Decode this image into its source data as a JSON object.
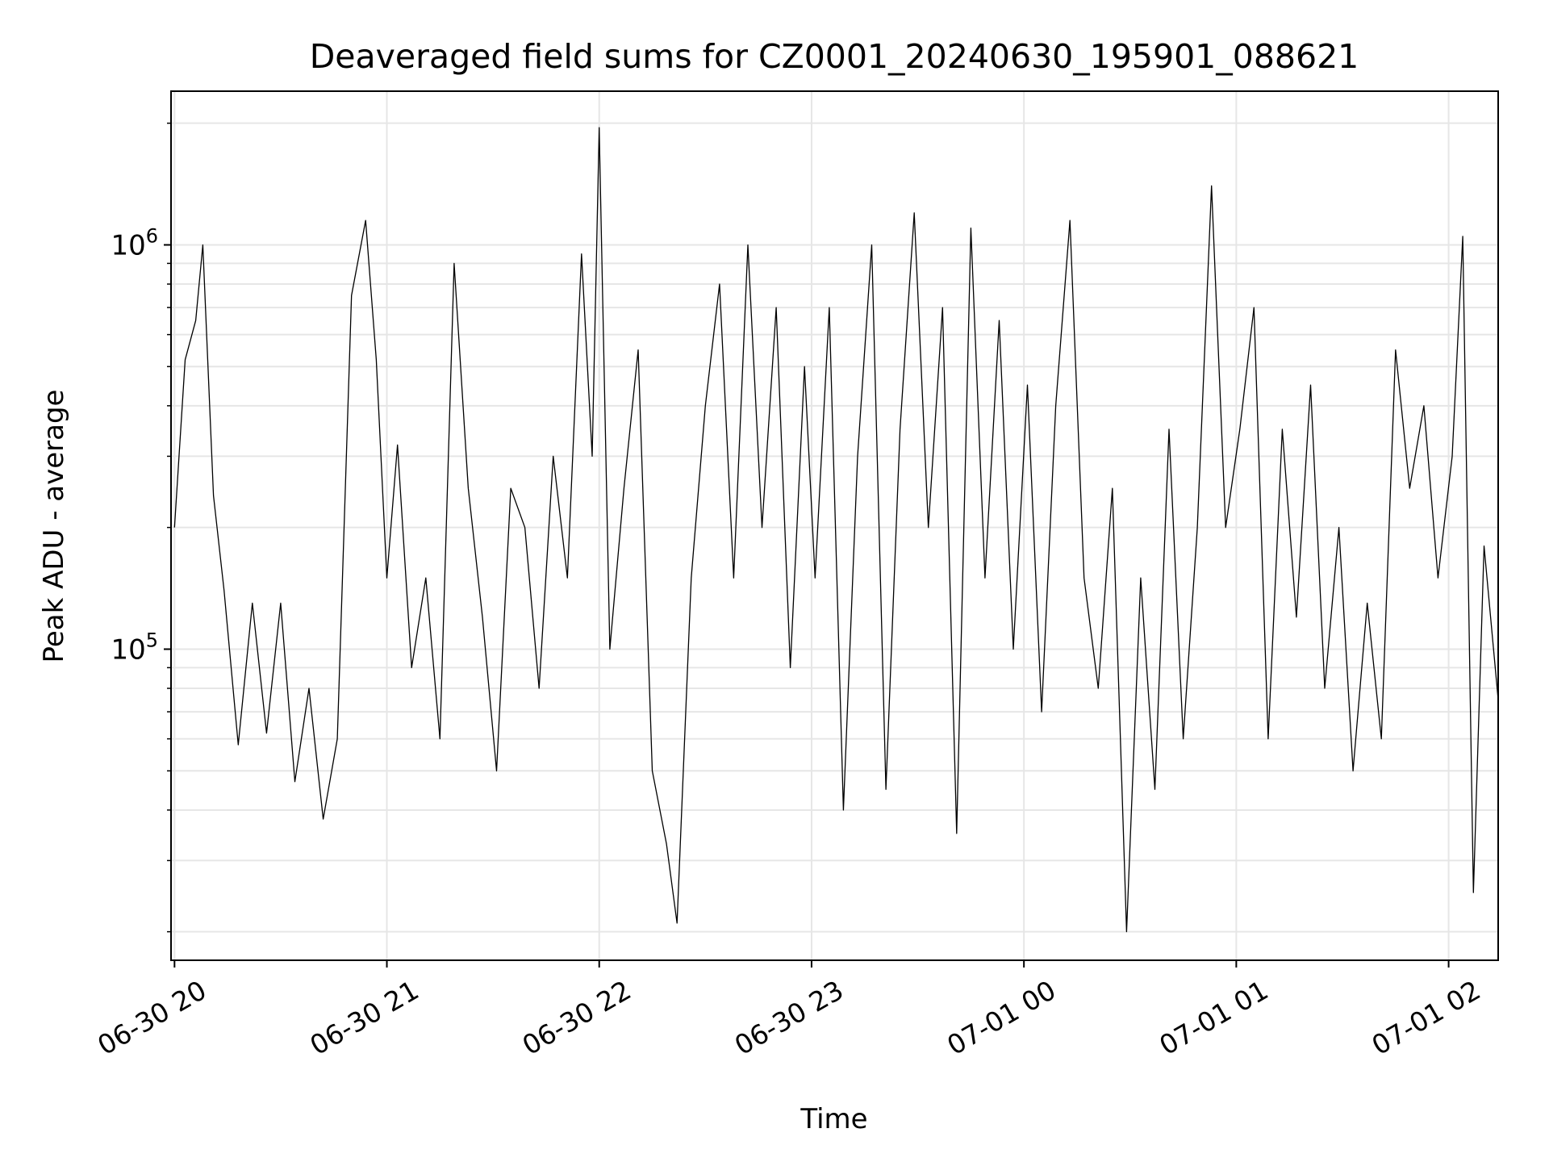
{
  "chart_data": {
    "type": "line",
    "title": "Deaveraged field sums for CZ0001_20240630_195901_088621",
    "xlabel": "Time",
    "ylabel": "Peak ADU - average",
    "y_scale": "log",
    "grid": true,
    "line_color": "#000000",
    "xlim": [
      "2024-06-30 19:59:01",
      "2024-07-01 02:14:00"
    ],
    "ylim": [
      17000,
      2400000
    ],
    "x_ticks": [
      {
        "value": "2024-06-30 20:00",
        "label": "06-30 20"
      },
      {
        "value": "2024-06-30 21:00",
        "label": "06-30 21"
      },
      {
        "value": "2024-06-30 22:00",
        "label": "06-30 22"
      },
      {
        "value": "2024-06-30 23:00",
        "label": "06-30 23"
      },
      {
        "value": "2024-07-01 00:00",
        "label": "07-01 00"
      },
      {
        "value": "2024-07-01 01:00",
        "label": "07-01 01"
      },
      {
        "value": "2024-07-01 02:00",
        "label": "07-01 02"
      }
    ],
    "y_ticks": [
      {
        "value": 100000,
        "base": "10",
        "exp": "5"
      },
      {
        "value": 1000000,
        "base": "10",
        "exp": "6"
      }
    ],
    "series": [
      {
        "points": [
          [
            "2024-06-30 20:00",
            200000
          ],
          [
            "2024-06-30 20:03",
            520000
          ],
          [
            "2024-06-30 20:06",
            650000
          ],
          [
            "2024-06-30 20:08",
            1000000
          ],
          [
            "2024-06-30 20:11",
            240000
          ],
          [
            "2024-06-30 20:14",
            140000
          ],
          [
            "2024-06-30 20:18",
            58000
          ],
          [
            "2024-06-30 20:22",
            130000
          ],
          [
            "2024-06-30 20:26",
            62000
          ],
          [
            "2024-06-30 20:30",
            130000
          ],
          [
            "2024-06-30 20:34",
            47000
          ],
          [
            "2024-06-30 20:38",
            80000
          ],
          [
            "2024-06-30 20:42",
            38000
          ],
          [
            "2024-06-30 20:46",
            60000
          ],
          [
            "2024-06-30 20:50",
            750000
          ],
          [
            "2024-06-30 20:54",
            1150000
          ],
          [
            "2024-06-30 20:57",
            520000
          ],
          [
            "2024-06-30 21:00",
            150000
          ],
          [
            "2024-06-30 21:03",
            320000
          ],
          [
            "2024-06-30 21:07",
            90000
          ],
          [
            "2024-06-30 21:11",
            150000
          ],
          [
            "2024-06-30 21:15",
            60000
          ],
          [
            "2024-06-30 21:19",
            900000
          ],
          [
            "2024-06-30 21:23",
            250000
          ],
          [
            "2024-06-30 21:27",
            120000
          ],
          [
            "2024-06-30 21:31",
            50000
          ],
          [
            "2024-06-30 21:35",
            250000
          ],
          [
            "2024-06-30 21:39",
            200000
          ],
          [
            "2024-06-30 21:43",
            80000
          ],
          [
            "2024-06-30 21:47",
            300000
          ],
          [
            "2024-06-30 21:51",
            150000
          ],
          [
            "2024-06-30 21:55",
            950000
          ],
          [
            "2024-06-30 21:58",
            300000
          ],
          [
            "2024-06-30 22:00",
            1950000
          ],
          [
            "2024-06-30 22:03",
            100000
          ],
          [
            "2024-06-30 22:07",
            250000
          ],
          [
            "2024-06-30 22:11",
            550000
          ],
          [
            "2024-06-30 22:15",
            50000
          ],
          [
            "2024-06-30 22:19",
            33000
          ],
          [
            "2024-06-30 22:22",
            21000
          ],
          [
            "2024-06-30 22:26",
            150000
          ],
          [
            "2024-06-30 22:30",
            400000
          ],
          [
            "2024-06-30 22:34",
            800000
          ],
          [
            "2024-06-30 22:38",
            150000
          ],
          [
            "2024-06-30 22:42",
            1000000
          ],
          [
            "2024-06-30 22:46",
            200000
          ],
          [
            "2024-06-30 22:50",
            700000
          ],
          [
            "2024-06-30 22:54",
            90000
          ],
          [
            "2024-06-30 22:58",
            500000
          ],
          [
            "2024-06-30 23:01",
            150000
          ],
          [
            "2024-06-30 23:05",
            700000
          ],
          [
            "2024-06-30 23:09",
            40000
          ],
          [
            "2024-06-30 23:13",
            300000
          ],
          [
            "2024-06-30 23:17",
            1000000
          ],
          [
            "2024-06-30 23:21",
            45000
          ],
          [
            "2024-06-30 23:25",
            350000
          ],
          [
            "2024-06-30 23:29",
            1200000
          ],
          [
            "2024-06-30 23:33",
            200000
          ],
          [
            "2024-06-30 23:37",
            700000
          ],
          [
            "2024-06-30 23:41",
            35000
          ],
          [
            "2024-06-30 23:45",
            1100000
          ],
          [
            "2024-06-30 23:49",
            150000
          ],
          [
            "2024-06-30 23:53",
            650000
          ],
          [
            "2024-06-30 23:57",
            100000
          ],
          [
            "2024-07-01 00:01",
            450000
          ],
          [
            "2024-07-01 00:05",
            70000
          ],
          [
            "2024-07-01 00:09",
            400000
          ],
          [
            "2024-07-01 00:13",
            1150000
          ],
          [
            "2024-07-01 00:17",
            150000
          ],
          [
            "2024-07-01 00:21",
            80000
          ],
          [
            "2024-07-01 00:25",
            250000
          ],
          [
            "2024-07-01 00:29",
            20000
          ],
          [
            "2024-07-01 00:33",
            150000
          ],
          [
            "2024-07-01 00:37",
            45000
          ],
          [
            "2024-07-01 00:41",
            350000
          ],
          [
            "2024-07-01 00:45",
            60000
          ],
          [
            "2024-07-01 00:49",
            200000
          ],
          [
            "2024-07-01 00:53",
            1400000
          ],
          [
            "2024-07-01 00:57",
            200000
          ],
          [
            "2024-07-01 01:01",
            350000
          ],
          [
            "2024-07-01 01:05",
            700000
          ],
          [
            "2024-07-01 01:09",
            60000
          ],
          [
            "2024-07-01 01:13",
            350000
          ],
          [
            "2024-07-01 01:17",
            120000
          ],
          [
            "2024-07-01 01:21",
            450000
          ],
          [
            "2024-07-01 01:25",
            80000
          ],
          [
            "2024-07-01 01:29",
            200000
          ],
          [
            "2024-07-01 01:33",
            50000
          ],
          [
            "2024-07-01 01:37",
            130000
          ],
          [
            "2024-07-01 01:41",
            60000
          ],
          [
            "2024-07-01 01:45",
            550000
          ],
          [
            "2024-07-01 01:49",
            250000
          ],
          [
            "2024-07-01 01:53",
            400000
          ],
          [
            "2024-07-01 01:57",
            150000
          ],
          [
            "2024-07-01 02:01",
            300000
          ],
          [
            "2024-07-01 02:04",
            1050000
          ],
          [
            "2024-07-01 02:07",
            25000
          ],
          [
            "2024-07-01 02:10",
            180000
          ],
          [
            "2024-07-01 02:14",
            75000
          ]
        ]
      }
    ]
  }
}
